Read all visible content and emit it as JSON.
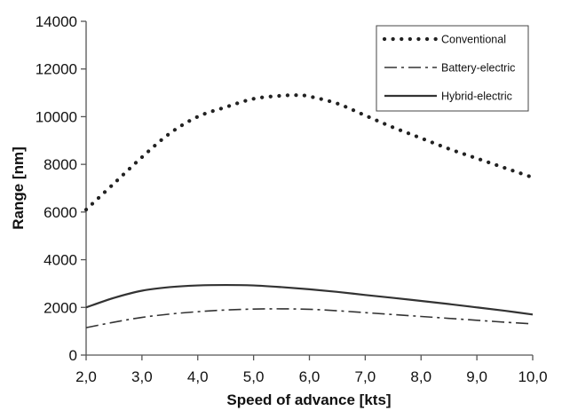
{
  "chart_data": {
    "type": "line",
    "title": "",
    "xlabel": "Speed of advance [kts]",
    "ylabel": "Range [nm]",
    "x": [
      2,
      3,
      4,
      5,
      6,
      7,
      8,
      9,
      10
    ],
    "xlim": [
      2,
      10
    ],
    "ylim": [
      0,
      14000
    ],
    "x_ticks": [
      "2,0",
      "3,0",
      "4,0",
      "5,0",
      "6,0",
      "7,0",
      "8,0",
      "9,0",
      "10,0"
    ],
    "y_ticks": [
      "0",
      "2000",
      "4000",
      "6000",
      "8000",
      "10000",
      "12000",
      "14000"
    ],
    "grid": false,
    "legend_position": "top-right",
    "series": [
      {
        "name": "Conventional",
        "style": "dotted",
        "color": "#222222",
        "x": [
          2.0,
          2.5,
          3.0,
          3.5,
          4.0,
          4.5,
          5.0,
          5.5,
          5.8,
          6.0,
          6.5,
          7.0,
          7.5,
          8.0,
          8.5,
          9.0,
          9.5,
          10.0
        ],
        "values": [
          6100,
          7200,
          8300,
          9300,
          10000,
          10400,
          10750,
          10880,
          10900,
          10850,
          10550,
          10050,
          9550,
          9100,
          8650,
          8250,
          7850,
          7450
        ]
      },
      {
        "name": "Battery-electric",
        "style": "dash-dot",
        "color": "#333333",
        "x": [
          2.0,
          2.5,
          3.0,
          3.5,
          4.0,
          4.5,
          5.0,
          5.5,
          6.0,
          6.5,
          7.0,
          7.5,
          8.0,
          8.5,
          9.0,
          9.5,
          10.0
        ],
        "values": [
          1150,
          1380,
          1580,
          1720,
          1820,
          1890,
          1930,
          1940,
          1920,
          1860,
          1780,
          1700,
          1620,
          1540,
          1460,
          1380,
          1310
        ]
      },
      {
        "name": "Hybrid-electric",
        "style": "solid",
        "color": "#333333",
        "x": [
          2.0,
          2.5,
          3.0,
          3.5,
          4.0,
          4.5,
          5.0,
          5.5,
          6.0,
          6.5,
          7.0,
          7.5,
          8.0,
          8.5,
          9.0,
          9.5,
          10.0
        ],
        "values": [
          2000,
          2400,
          2700,
          2850,
          2920,
          2940,
          2920,
          2850,
          2760,
          2650,
          2520,
          2400,
          2270,
          2140,
          2000,
          1860,
          1700
        ]
      }
    ]
  }
}
